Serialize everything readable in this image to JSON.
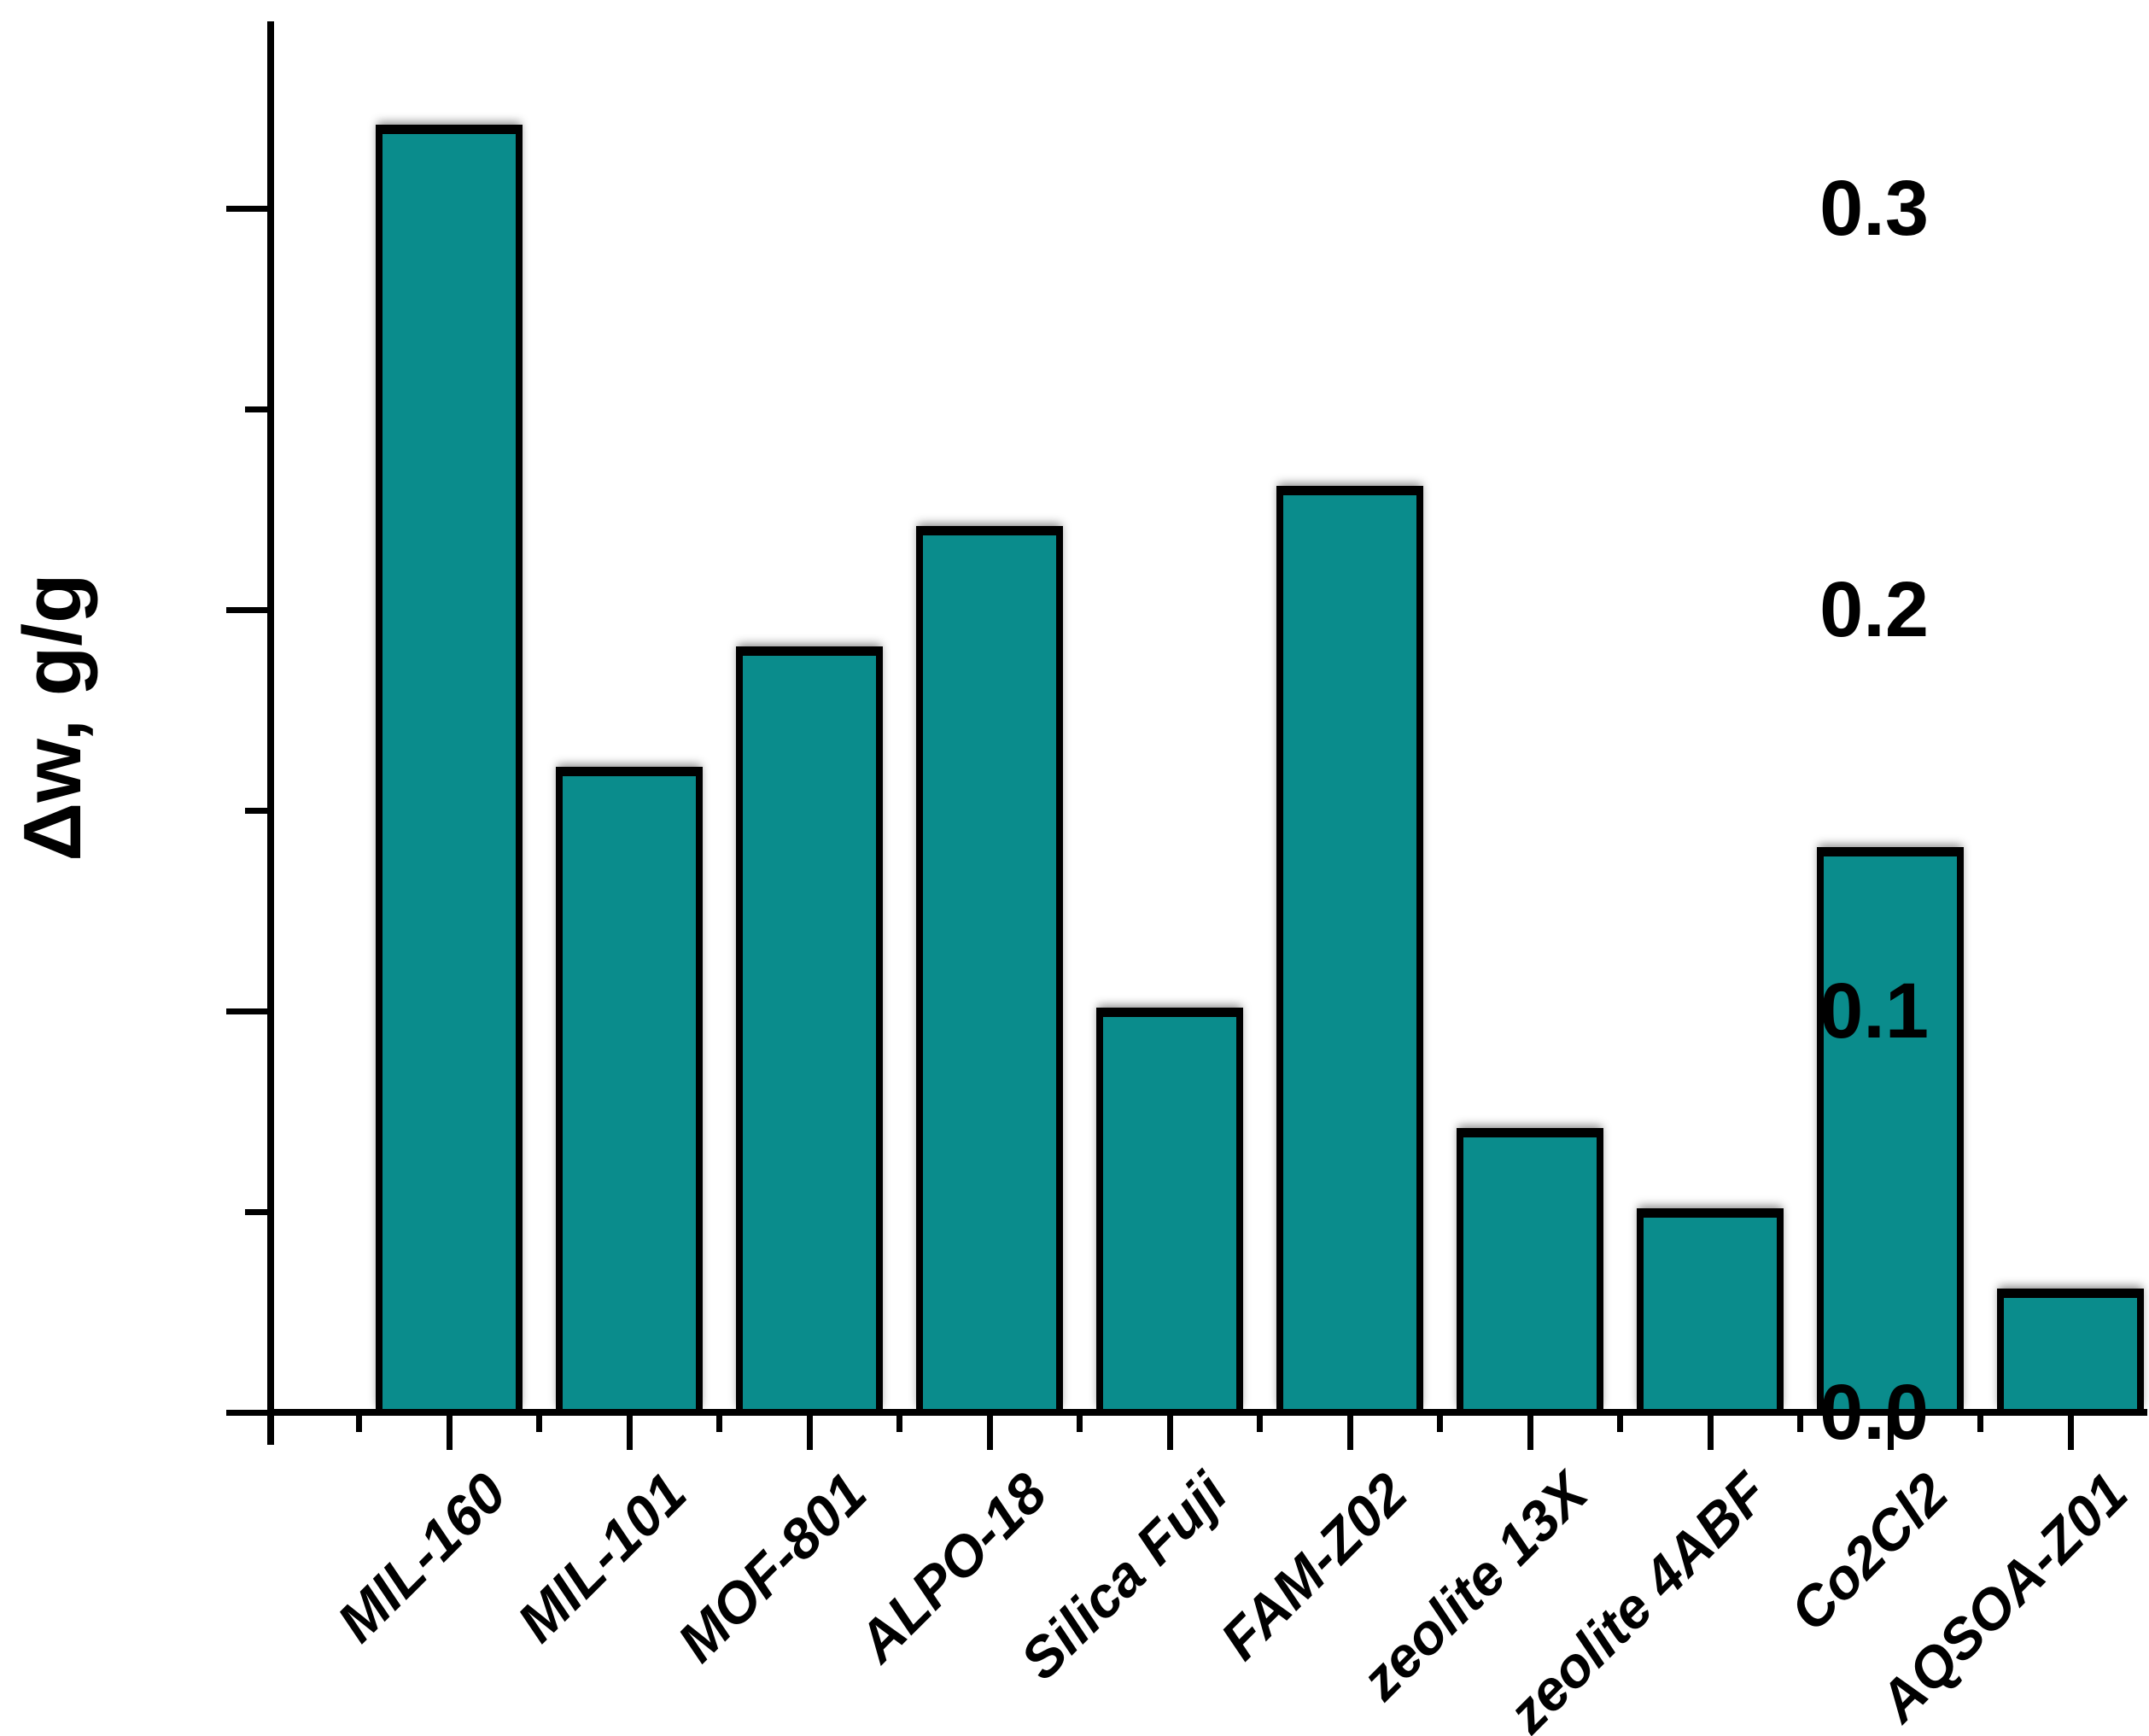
{
  "chart_data": {
    "type": "bar",
    "title": "",
    "ylabel": "Δw, g/g",
    "xlabel": "",
    "categories": [
      "MIL-160",
      "MIL-101",
      "MOF-801",
      "ALPO-18",
      "Silica Fuji",
      "FAM-Z02",
      "zeolite 13X",
      "zeolite 4ABF",
      "Co2Cl2",
      "AQSOA-Z01"
    ],
    "values": [
      0.32,
      0.16,
      0.19,
      0.22,
      0.1,
      0.23,
      0.07,
      0.05,
      0.14,
      0.03
    ],
    "ylim": [
      0,
      0.345
    ],
    "y_ticks_major": [
      0.0,
      0.1,
      0.2,
      0.3
    ],
    "y_tick_labels": [
      "0.0",
      "0.1",
      "0.2",
      "0.3"
    ],
    "y_ticks_minor": [
      0.05,
      0.15,
      0.25
    ],
    "grid": "off",
    "legend": "none",
    "bar_color": "#0a8c8c",
    "bar_border_color": "#000000",
    "axis_color": "#000000",
    "text_color": "#000000",
    "background": "#ffffff"
  }
}
